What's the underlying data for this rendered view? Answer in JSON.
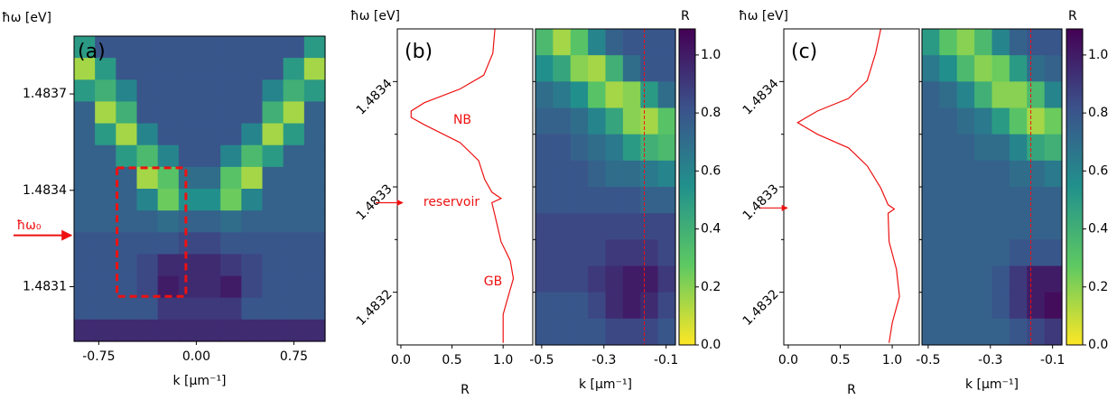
{
  "chart_data": [
    {
      "type": "heatmap",
      "panel": "(a)",
      "ylabel": "ħω [eV]",
      "xlabel": "k [µm⁻¹]",
      "xlim": [
        -0.94,
        0.99
      ],
      "ylim": [
        1.48293,
        1.48388
      ],
      "xticks": [
        -0.75,
        {
          "value": 0,
          "label": "0.00"
        },
        0.75
      ],
      "yticks": [
        1.4831,
        1.4834,
        1.4837
      ],
      "colormap": "viridis_r",
      "clim": [
        0,
        1.09
      ],
      "arrow": 1.48326,
      "arrow_label": "ħω₀",
      "arrow_color": "#ee1111",
      "box": {
        "xlim": [
          -0.61,
          -0.08
        ],
        "ylim": [
          1.48307,
          1.48347
        ],
        "color": "#ee1111"
      },
      "z": [
        [
          0.5,
          0.8,
          0.8,
          0.8,
          0.8,
          0.8,
          0.8,
          0.8,
          0.8,
          0.8,
          0.8,
          0.5
        ],
        [
          0.15,
          0.5,
          0.8,
          0.8,
          0.8,
          0.8,
          0.8,
          0.8,
          0.8,
          0.8,
          0.5,
          0.15
        ],
        [
          0.5,
          0.4,
          0.6,
          0.8,
          0.8,
          0.8,
          0.8,
          0.8,
          0.8,
          0.6,
          0.4,
          0.5
        ],
        [
          0.75,
          0.15,
          0.4,
          0.8,
          0.8,
          0.8,
          0.8,
          0.8,
          0.8,
          0.4,
          0.15,
          0.75
        ],
        [
          0.75,
          0.5,
          0.15,
          0.6,
          0.8,
          0.8,
          0.8,
          0.8,
          0.6,
          0.15,
          0.5,
          0.75
        ],
        [
          0.75,
          0.75,
          0.5,
          0.35,
          0.6,
          0.8,
          0.8,
          0.6,
          0.35,
          0.5,
          0.75,
          0.75
        ],
        [
          0.75,
          0.75,
          0.75,
          0.15,
          0.3,
          0.7,
          0.7,
          0.3,
          0.15,
          0.75,
          0.75,
          0.75
        ],
        [
          0.75,
          0.75,
          0.75,
          0.6,
          0.25,
          0.55,
          0.55,
          0.25,
          0.6,
          0.75,
          0.75,
          0.75
        ],
        [
          0.75,
          0.75,
          0.75,
          0.75,
          0.7,
          0.75,
          0.75,
          0.7,
          0.75,
          0.75,
          0.75,
          0.75
        ],
        [
          0.8,
          0.8,
          0.8,
          0.8,
          0.8,
          0.85,
          0.85,
          0.8,
          0.8,
          0.8,
          0.8,
          0.8
        ],
        [
          0.8,
          0.8,
          0.8,
          0.85,
          0.95,
          0.95,
          0.95,
          0.9,
          0.85,
          0.8,
          0.8,
          0.8
        ],
        [
          0.8,
          0.8,
          0.8,
          0.85,
          1.0,
          0.95,
          0.95,
          1.0,
          0.85,
          0.8,
          0.8,
          0.8
        ],
        [
          0.8,
          0.8,
          0.8,
          0.8,
          0.9,
          0.9,
          0.9,
          0.9,
          0.8,
          0.8,
          0.8,
          0.8
        ],
        [
          0.95,
          0.95,
          0.95,
          0.95,
          0.95,
          0.95,
          0.95,
          0.95,
          0.95,
          0.95,
          0.95,
          0.95
        ]
      ]
    },
    {
      "type": "line",
      "panel": "(b)",
      "ylabel": "ħω [eV]",
      "xlabel": "R",
      "orientation": "horizontal",
      "xlim": [
        -0.035,
        1.29
      ],
      "ylim": [
        1.48315,
        1.48345
      ],
      "xticks": [
        {
          "value": 0,
          "label": "0.0"
        },
        0.5,
        {
          "value": 1,
          "label": "1.0"
        }
      ],
      "yticks": [
        1.4832,
        1.4833,
        1.4834
      ],
      "yticks_minor": [
        1.48325,
        1.48335
      ],
      "arrow": 1.483285,
      "arrow_color": "#ee1111",
      "annotations": [
        {
          "text": "NB"
        },
        {
          "text": "reservoir"
        },
        {
          "text": "GB"
        }
      ],
      "annotation_color": "#ee1111",
      "series": [
        {
          "color": "#ee1111",
          "x": [
            1.48345,
            1.483427,
            1.483406,
            1.483393,
            1.48338,
            1.483372,
            1.483366,
            1.483359,
            1.483342,
            1.483325,
            1.483307,
            1.483295,
            1.483289,
            1.483285,
            1.483273,
            1.483248,
            1.48323,
            1.483213,
            1.483196,
            1.483179,
            1.483152
          ],
          "values": [
            0.92,
            0.9,
            0.81,
            0.58,
            0.23,
            0.1,
            0.1,
            0.23,
            0.58,
            0.76,
            0.82,
            0.89,
            0.98,
            0.89,
            0.92,
            0.98,
            1.07,
            1.1,
            1.05,
            1.0,
            1.0
          ]
        }
      ]
    },
    {
      "type": "heatmap",
      "xlabel": "k [µm⁻¹]",
      "xlim": [
        -0.52,
        -0.07
      ],
      "ylim": [
        1.48315,
        1.48345
      ],
      "xticks": [
        -0.5,
        -0.3,
        -0.1
      ],
      "colormap": "viridis_r",
      "clim": [
        0,
        1.09
      ],
      "cut": -0.17,
      "cut_color": "#ee1111",
      "colorbar": {
        "label": "R",
        "ticks": [
          {
            "value": 0,
            "label": "0.0"
          },
          0.2,
          0.4,
          0.6,
          0.8,
          {
            "value": 1,
            "label": "1.0"
          }
        ]
      },
      "z": [
        [
          0.35,
          0.15,
          0.3,
          0.6,
          0.75,
          0.8,
          0.8,
          0.8
        ],
        [
          0.55,
          0.45,
          0.2,
          0.15,
          0.4,
          0.7,
          0.8,
          0.8
        ],
        [
          0.7,
          0.65,
          0.55,
          0.3,
          0.15,
          0.2,
          0.5,
          0.7
        ],
        [
          0.75,
          0.75,
          0.7,
          0.6,
          0.45,
          0.2,
          0.15,
          0.3
        ],
        [
          0.8,
          0.8,
          0.75,
          0.7,
          0.65,
          0.5,
          0.4,
          0.35
        ],
        [
          0.8,
          0.8,
          0.8,
          0.75,
          0.7,
          0.7,
          0.65,
          0.6
        ],
        [
          0.8,
          0.8,
          0.8,
          0.8,
          0.8,
          0.8,
          0.75,
          0.75
        ],
        [
          0.85,
          0.85,
          0.85,
          0.85,
          0.85,
          0.85,
          0.85,
          0.85
        ],
        [
          0.85,
          0.85,
          0.85,
          0.85,
          0.9,
          0.9,
          0.9,
          0.85
        ],
        [
          0.85,
          0.85,
          0.85,
          0.9,
          0.95,
          1.0,
          1.0,
          0.9
        ],
        [
          0.8,
          0.8,
          0.8,
          0.85,
          0.95,
          1.0,
          0.95,
          0.85
        ],
        [
          0.8,
          0.8,
          0.8,
          0.8,
          0.85,
          0.85,
          0.85,
          0.8
        ]
      ]
    },
    {
      "type": "line",
      "panel": "(c)",
      "ylabel": "ħω [eV]",
      "xlabel": "R",
      "orientation": "horizontal",
      "xlim": [
        -0.043,
        1.26
      ],
      "ylim": [
        1.48315,
        1.48345
      ],
      "xticks": [
        {
          "value": 0,
          "label": "0.0"
        },
        0.5,
        {
          "value": 1,
          "label": "1.0"
        }
      ],
      "yticks": [
        1.4832,
        1.4833,
        1.4834
      ],
      "yticks_minor": [
        1.48325,
        1.48335
      ],
      "arrow": 1.48328,
      "arrow_color": "#ee1111",
      "series": [
        {
          "color": "#ee1111",
          "x": [
            1.48345,
            1.483427,
            1.483401,
            1.483384,
            1.483372,
            1.483361,
            1.48335,
            1.483337,
            1.48332,
            1.483299,
            1.483283,
            1.483279,
            1.483275,
            1.483248,
            1.483222,
            1.483196,
            1.483171,
            1.483152
          ],
          "values": [
            0.89,
            0.84,
            0.76,
            0.58,
            0.28,
            0.09,
            0.28,
            0.58,
            0.76,
            0.89,
            0.96,
            1.02,
            0.96,
            0.97,
            1.04,
            1.07,
            1.0,
            0.97
          ]
        }
      ]
    },
    {
      "type": "heatmap",
      "xlabel": "k [µm⁻¹]",
      "xlim": [
        -0.52,
        -0.07
      ],
      "ylim": [
        1.48315,
        1.48345
      ],
      "xticks": [
        -0.5,
        -0.3,
        -0.1
      ],
      "colormap": "viridis_r",
      "clim": [
        0,
        1.09
      ],
      "cut": -0.17,
      "cut_color": "#ee1111",
      "colorbar": {
        "label": "R",
        "ticks": [
          {
            "value": 0,
            "label": "0.0"
          },
          0.2,
          0.4,
          0.6,
          0.8,
          {
            "value": 1,
            "label": "1.0"
          }
        ]
      },
      "z": [
        [
          0.5,
          0.3,
          0.2,
          0.35,
          0.6,
          0.75,
          0.8,
          0.8
        ],
        [
          0.65,
          0.55,
          0.35,
          0.2,
          0.25,
          0.5,
          0.7,
          0.75
        ],
        [
          0.75,
          0.7,
          0.6,
          0.4,
          0.2,
          0.2,
          0.35,
          0.6
        ],
        [
          0.75,
          0.75,
          0.7,
          0.65,
          0.5,
          0.3,
          0.15,
          0.25
        ],
        [
          0.75,
          0.75,
          0.75,
          0.7,
          0.7,
          0.6,
          0.45,
          0.4
        ],
        [
          0.75,
          0.75,
          0.75,
          0.75,
          0.75,
          0.7,
          0.7,
          0.65
        ],
        [
          0.75,
          0.75,
          0.75,
          0.75,
          0.75,
          0.75,
          0.75,
          0.75
        ],
        [
          0.75,
          0.75,
          0.75,
          0.75,
          0.75,
          0.75,
          0.75,
          0.75
        ],
        [
          0.75,
          0.75,
          0.75,
          0.75,
          0.75,
          0.8,
          0.8,
          0.8
        ],
        [
          0.75,
          0.75,
          0.75,
          0.75,
          0.8,
          0.9,
          1.0,
          1.0
        ],
        [
          0.75,
          0.75,
          0.75,
          0.75,
          0.8,
          0.9,
          1.0,
          1.05
        ],
        [
          0.75,
          0.75,
          0.75,
          0.75,
          0.75,
          0.8,
          0.85,
          0.9
        ]
      ]
    }
  ]
}
